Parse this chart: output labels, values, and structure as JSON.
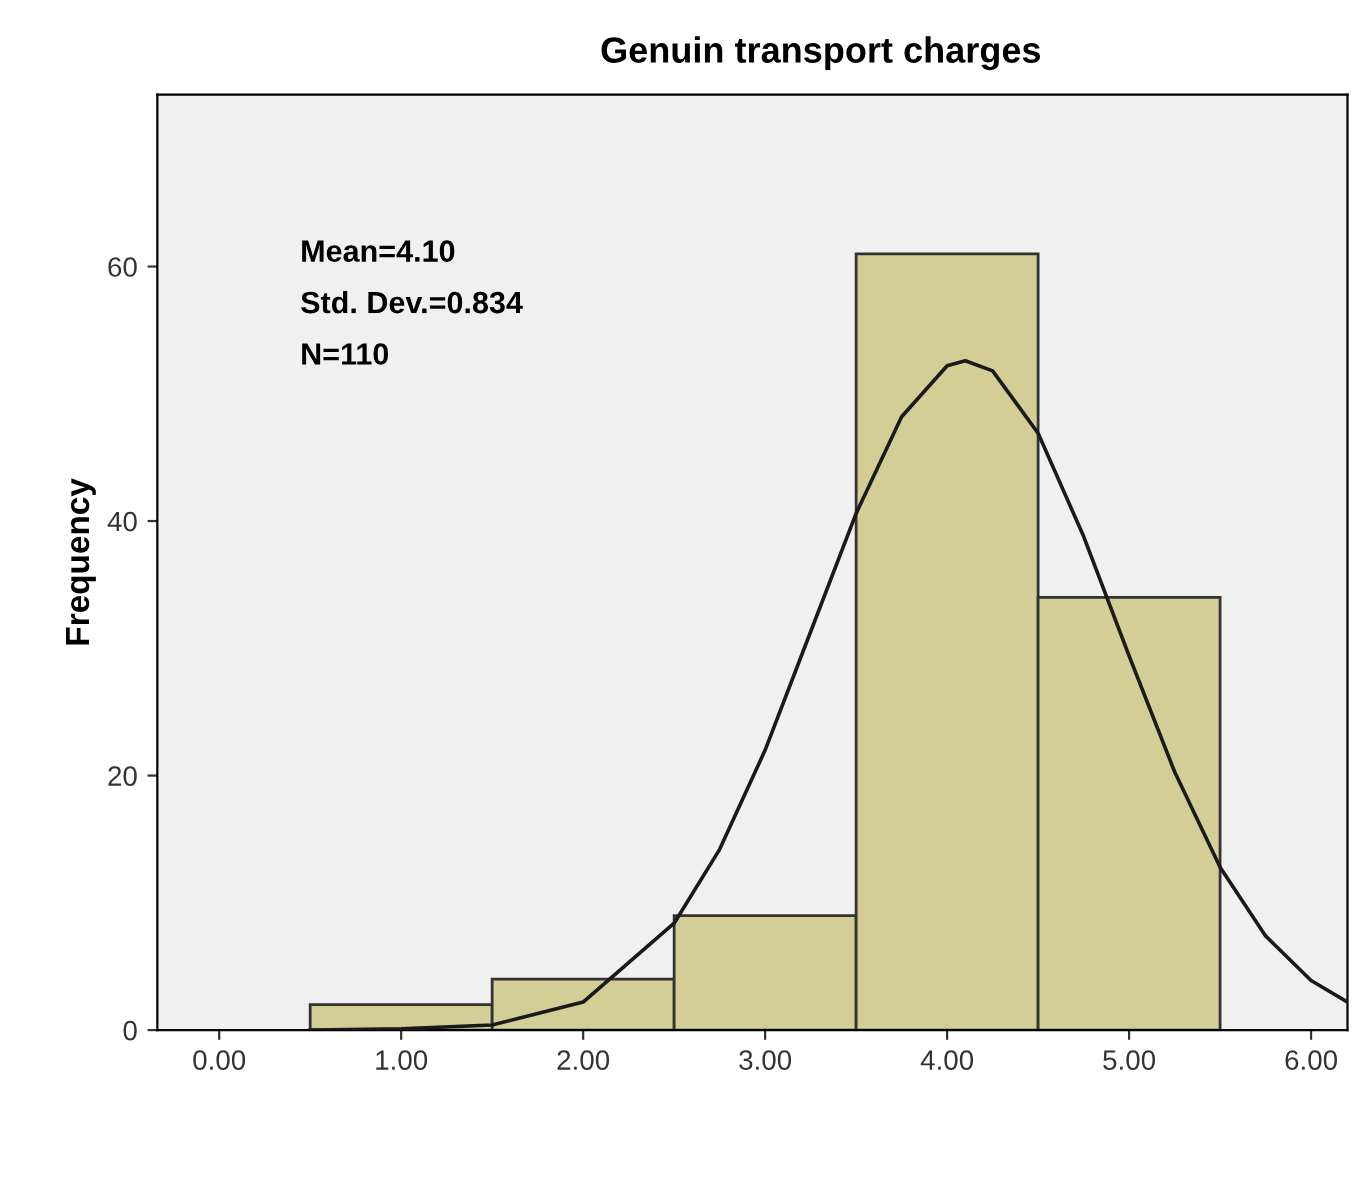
{
  "chart_data": {
    "type": "histogram",
    "title": "Genuin transport charges",
    "ylabel": "Frequency",
    "bins": [
      0.5,
      1.5,
      2.5,
      3.5,
      4.5,
      5.5
    ],
    "values": [
      2,
      4,
      9,
      61,
      34
    ],
    "color": "#d5cd96",
    "series": [
      {
        "type": "line",
        "color": "#1a1a1a",
        "x": [
          0.5,
          1.0,
          1.5,
          2.0,
          2.5,
          2.75,
          3.0,
          3.25,
          3.5,
          3.75,
          4.0,
          4.1,
          4.25,
          4.5,
          4.75,
          5.0,
          5.25,
          5.5,
          5.75,
          6.0,
          6.2
        ],
        "values": [
          0,
          0.1,
          0.4,
          2.2,
          8.4,
          14.2,
          22.0,
          31.3,
          40.6,
          48.2,
          52.2,
          52.6,
          51.8,
          46.9,
          38.8,
          29.4,
          20.3,
          12.8,
          7.4,
          3.9,
          2.2
        ]
      }
    ],
    "annotations": [
      "Mean=4.10",
      "Std. Dev.=0.834",
      "N=110"
    ],
    "xlim": [
      -0.34,
      6.2
    ],
    "ylim": [
      0,
      73.5
    ],
    "xticks": [
      {
        "value": 0,
        "label": "0.00"
      },
      {
        "value": 1,
        "label": "1.00"
      },
      {
        "value": 2,
        "label": "2.00"
      },
      {
        "value": 3,
        "label": "3.00"
      },
      {
        "value": 4,
        "label": "4.00"
      },
      {
        "value": 5,
        "label": "5.00"
      },
      {
        "value": 6,
        "label": "6.00"
      }
    ],
    "yticks": [
      0,
      20,
      40,
      60
    ],
    "grid": false
  }
}
